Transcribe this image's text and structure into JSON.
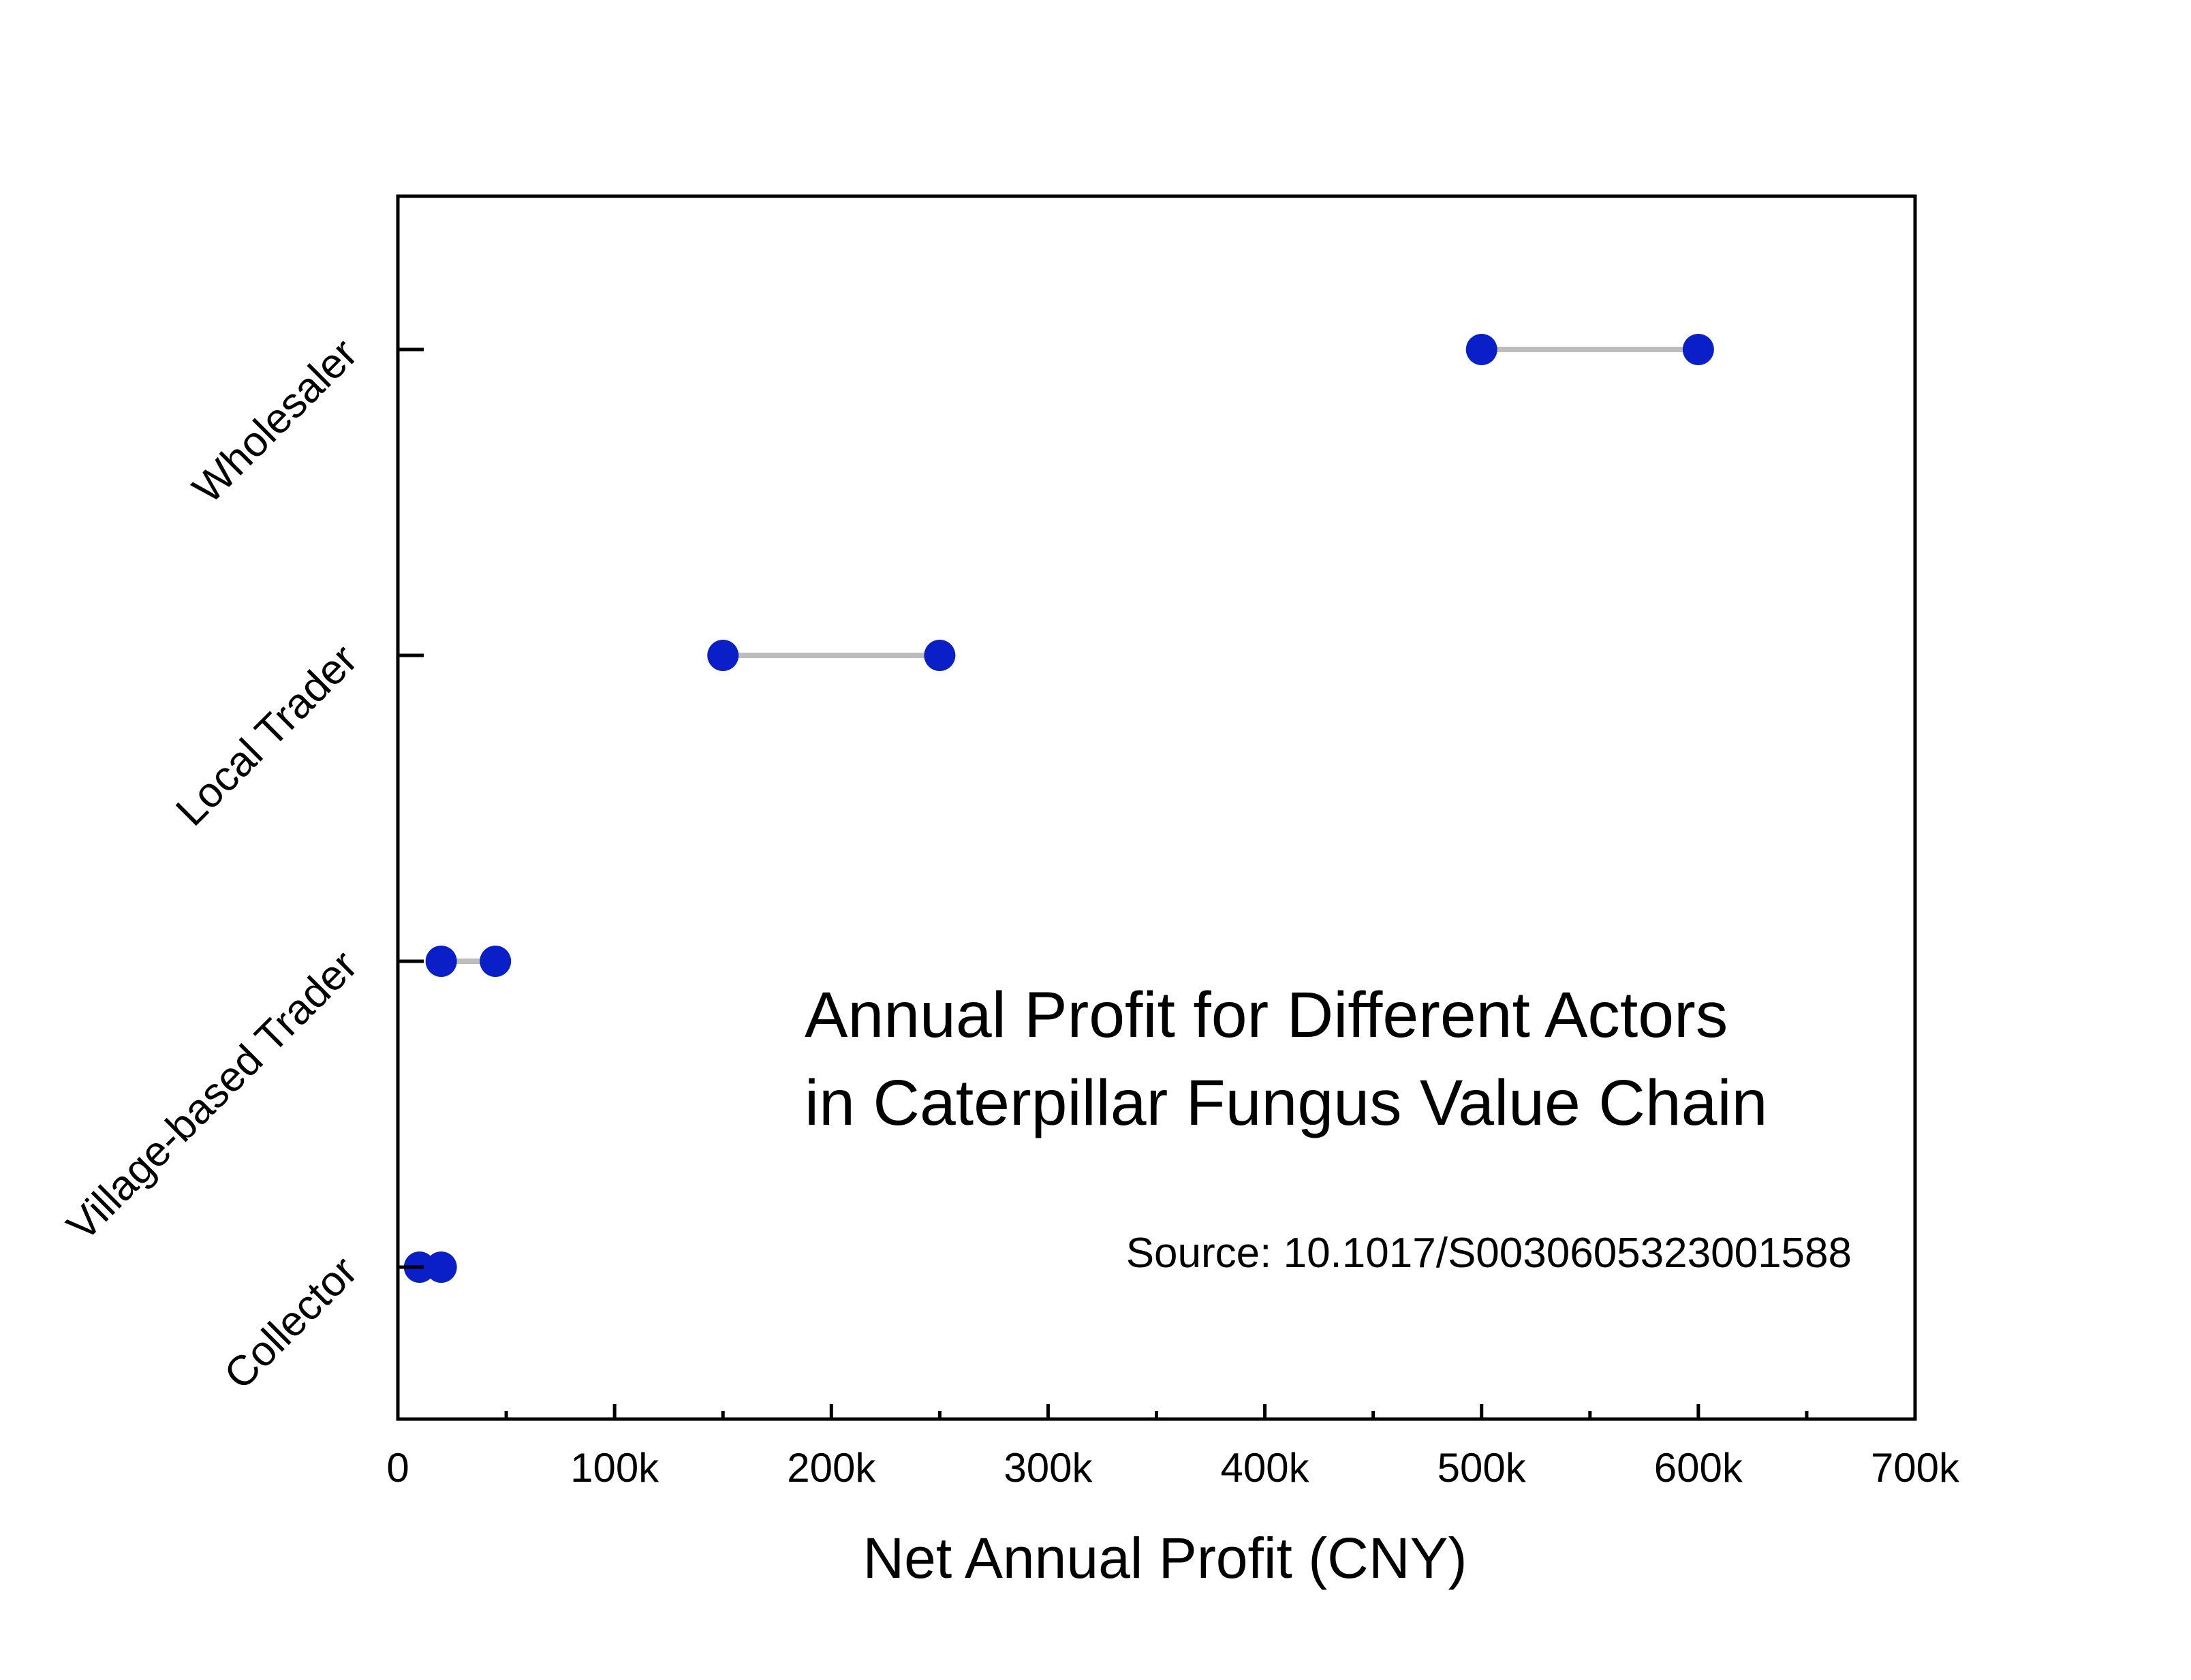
{
  "chart_data": {
    "type": "dumbbell",
    "title": "",
    "annotation_title_lines": [
      "Annual Profit for Different Actors",
      "in Caterpillar Fungus Value Chain"
    ],
    "source": "Source: 10.1017/S0030605323001588",
    "xlabel": "Net Annual Profit (CNY)",
    "ylabel": "",
    "xlim": [
      0,
      700000
    ],
    "x_ticks": [
      0,
      100000,
      200000,
      300000,
      400000,
      500000,
      600000,
      700000
    ],
    "x_tick_labels": [
      "0",
      "100k",
      "200k",
      "300k",
      "400k",
      "500k",
      "600k",
      "700k"
    ],
    "categories": [
      "Collector",
      "Village-based Trader",
      "Local Trader",
      "Wholesaler"
    ],
    "ranges": [
      {
        "category": "Collector",
        "low": 10000,
        "high": 20000
      },
      {
        "category": "Village-based Trader",
        "low": 20000,
        "high": 45000
      },
      {
        "category": "Local Trader",
        "low": 150000,
        "high": 250000
      },
      {
        "category": "Wholesaler",
        "low": 500000,
        "high": 600000
      }
    ],
    "grid": false,
    "colors": {
      "point": "#0a1fc8",
      "connector": "#bdbdbd",
      "axis": "#000000"
    }
  }
}
